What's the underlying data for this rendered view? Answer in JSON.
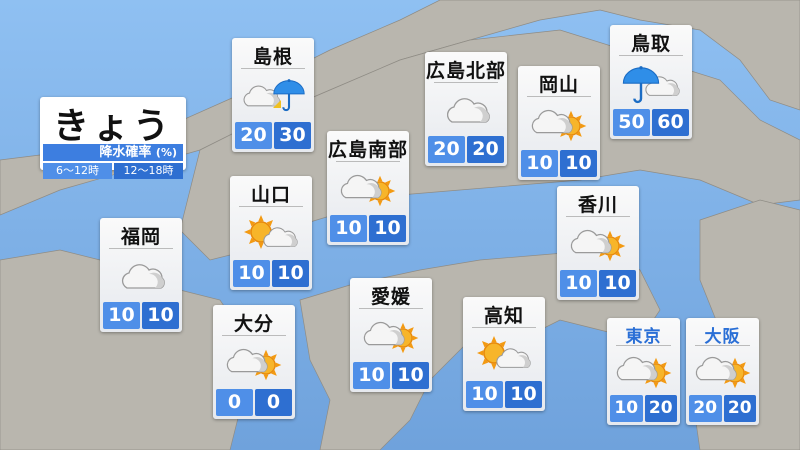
{
  "title": {
    "main": "きょう",
    "subtitle": "降水確率",
    "unit": "(%)",
    "periods": [
      "6～12時",
      "12～18時"
    ]
  },
  "colors": {
    "sea": "#7eaee6",
    "land": "#b9b6ae",
    "value_left": "#4f8fe8",
    "value_right": "#2e6fd1",
    "name_small": "#2a6fd6"
  },
  "cards": [
    {
      "name": "島根",
      "icon": "cloud-umbrella",
      "values": [
        "20",
        "30"
      ]
    },
    {
      "name": "広島北部",
      "icon": "cloud",
      "values": [
        "20",
        "20"
      ]
    },
    {
      "name": "岡山",
      "icon": "cloud-sun",
      "values": [
        "10",
        "10"
      ]
    },
    {
      "name": "鳥取",
      "icon": "umbrella-cloud",
      "values": [
        "50",
        "60"
      ]
    },
    {
      "name": "広島南部",
      "icon": "cloud-sun",
      "values": [
        "10",
        "10"
      ]
    },
    {
      "name": "山口",
      "icon": "sun-cloud",
      "values": [
        "10",
        "10"
      ]
    },
    {
      "name": "香川",
      "icon": "cloud-sun",
      "values": [
        "10",
        "10"
      ]
    },
    {
      "name": "福岡",
      "icon": "cloud",
      "values": [
        "10",
        "10"
      ]
    },
    {
      "name": "大分",
      "icon": "cloud-sun",
      "values": [
        "0",
        "0"
      ]
    },
    {
      "name": "愛媛",
      "icon": "cloud-sun",
      "values": [
        "10",
        "10"
      ]
    },
    {
      "name": "高知",
      "icon": "sun-cloud",
      "values": [
        "10",
        "10"
      ]
    },
    {
      "name": "東京",
      "icon": "cloud-sun",
      "values": [
        "10",
        "20"
      ]
    },
    {
      "name": "大阪",
      "icon": "cloud-sun",
      "values": [
        "20",
        "20"
      ]
    }
  ]
}
